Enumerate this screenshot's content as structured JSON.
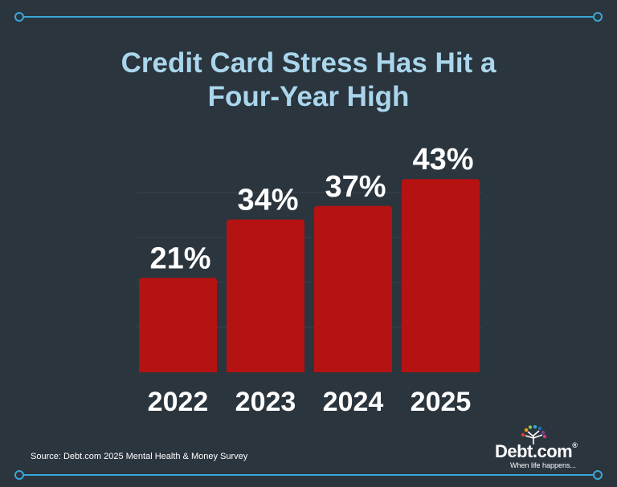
{
  "colors": {
    "background": "#2b353e",
    "accent_line": "#3aa7d6",
    "title": "#a9d6ec",
    "bar": "#b51212",
    "gridline": "#3a444d"
  },
  "chart_data": {
    "type": "bar",
    "title": "Credit Card Stress Has Hit a Four-Year High",
    "title_lines": [
      "Credit Card Stress Has Hit a",
      "Four-Year High"
    ],
    "categories": [
      "2022",
      "2023",
      "2024",
      "2025"
    ],
    "values": [
      21,
      34,
      37,
      43
    ],
    "value_labels": [
      "21%",
      "34%",
      "37%",
      "43%"
    ],
    "ylim": [
      0,
      50
    ],
    "grid": true,
    "legend": "none",
    "xlabel": "",
    "ylabel": ""
  },
  "footer": {
    "source": "Source: Debt.com 2025 Mental Health & Money Survey"
  },
  "logo": {
    "brand": "Debt.com",
    "registered": "®",
    "tagline": "When life happens..."
  }
}
